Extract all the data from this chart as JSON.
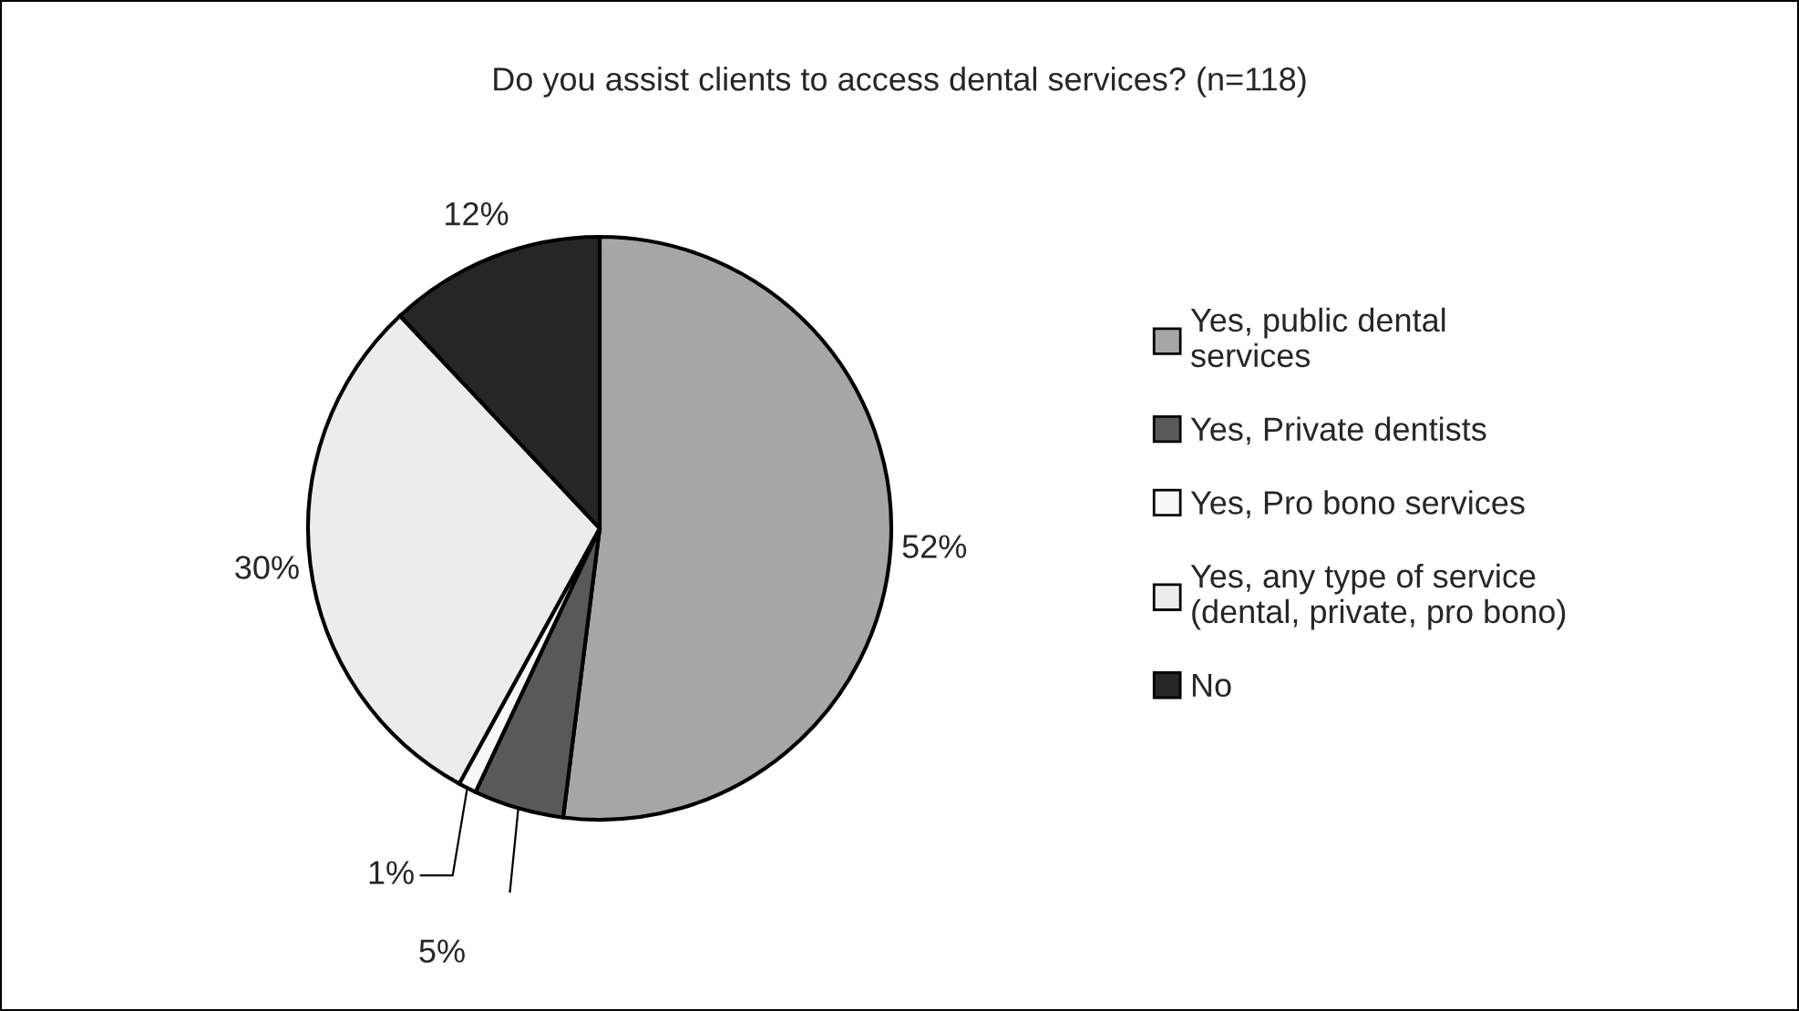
{
  "chart_data": {
    "type": "pie",
    "title": "Do you assist clients to access dental services? (n=118)",
    "categories": [
      "Yes, public dental\nservices",
      "Yes, Private dentists",
      "Yes, Pro bono services",
      "Yes, any type of service\n(dental, private, pro bono)",
      "No"
    ],
    "values": [
      52,
      5,
      1,
      30,
      12
    ],
    "colors": [
      "#a6a6a6",
      "#595959",
      "#f8f8f8",
      "#ececec",
      "#262626"
    ],
    "value_labels": [
      "52%",
      "5%",
      "1%",
      "30%",
      "12%"
    ],
    "legend": "right"
  }
}
